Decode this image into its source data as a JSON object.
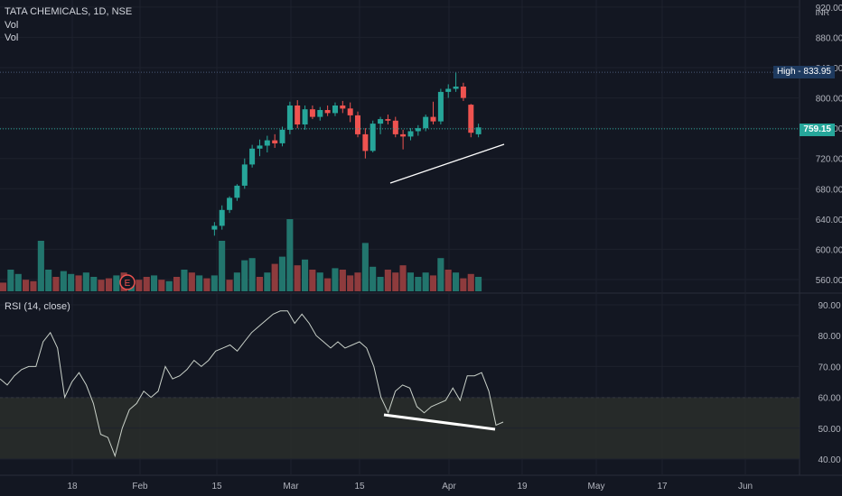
{
  "header": {
    "symbol_line": "TATA CHEMICALS, 1D, NSE",
    "vol_1": "Vol",
    "vol_2": "Vol",
    "currency": "INR"
  },
  "rsi_panel": {
    "title": "RSI (14, close)"
  },
  "badges": {
    "high_label": "High",
    "high_value": "833.95",
    "last_value": "759.15",
    "earnings_marker": "E"
  },
  "colors": {
    "background": "#131722",
    "up": "#26a69a",
    "down": "#ef5350",
    "up_volume": "#22756d",
    "down_volume": "#8e3b3d",
    "last_price_badge": "#26a69a",
    "high_badge": "#1e3a5f",
    "rsi_line": "#c9d1c9",
    "rsi_band": "#2a2e2a",
    "trendline": "#ffffff",
    "grid": "#1e222d",
    "axis_text": "#b2b5be"
  },
  "chart_data": [
    {
      "type": "candlestick",
      "title": "TATA CHEMICALS, 1D, NSE",
      "y_axis": {
        "ticks": [
          "920.00",
          "880.00",
          "840.00",
          "800.00",
          "760.00",
          "720.00",
          "680.00",
          "640.00",
          "600.00",
          "560.00"
        ],
        "range": [
          550,
          922
        ]
      },
      "x_axis": {
        "ticks": [
          "18",
          "Feb",
          "15",
          "Mar",
          "15",
          "Apr",
          "19",
          "May",
          "17",
          "Jun"
        ]
      },
      "price_lines": {
        "high": 833.95,
        "last": 759.15
      },
      "candles_visible_range_note": "",
      "candles": [
        {
          "o": 626,
          "h": 636,
          "l": 618,
          "c": 631
        },
        {
          "o": 631,
          "h": 658,
          "l": 626,
          "c": 652
        },
        {
          "o": 652,
          "h": 670,
          "l": 648,
          "c": 668
        },
        {
          "o": 668,
          "h": 686,
          "l": 664,
          "c": 684
        },
        {
          "o": 684,
          "h": 720,
          "l": 680,
          "c": 712
        },
        {
          "o": 712,
          "h": 738,
          "l": 708,
          "c": 733
        },
        {
          "o": 733,
          "h": 745,
          "l": 723,
          "c": 737
        },
        {
          "o": 737,
          "h": 750,
          "l": 728,
          "c": 744
        },
        {
          "o": 744,
          "h": 752,
          "l": 734,
          "c": 740
        },
        {
          "o": 740,
          "h": 762,
          "l": 736,
          "c": 758
        },
        {
          "o": 758,
          "h": 795,
          "l": 752,
          "c": 790
        },
        {
          "o": 790,
          "h": 797,
          "l": 760,
          "c": 765
        },
        {
          "o": 765,
          "h": 790,
          "l": 758,
          "c": 785
        },
        {
          "o": 785,
          "h": 790,
          "l": 772,
          "c": 775
        },
        {
          "o": 775,
          "h": 788,
          "l": 770,
          "c": 784
        },
        {
          "o": 784,
          "h": 790,
          "l": 776,
          "c": 780
        },
        {
          "o": 780,
          "h": 794,
          "l": 776,
          "c": 790
        },
        {
          "o": 790,
          "h": 796,
          "l": 780,
          "c": 786
        },
        {
          "o": 786,
          "h": 794,
          "l": 768,
          "c": 777
        },
        {
          "o": 777,
          "h": 782,
          "l": 748,
          "c": 752
        },
        {
          "o": 752,
          "h": 760,
          "l": 720,
          "c": 730
        },
        {
          "o": 730,
          "h": 770,
          "l": 728,
          "c": 766
        },
        {
          "o": 766,
          "h": 775,
          "l": 752,
          "c": 772
        },
        {
          "o": 772,
          "h": 778,
          "l": 765,
          "c": 770
        },
        {
          "o": 770,
          "h": 775,
          "l": 748,
          "c": 752
        },
        {
          "o": 752,
          "h": 758,
          "l": 732,
          "c": 749
        },
        {
          "o": 749,
          "h": 760,
          "l": 744,
          "c": 756
        },
        {
          "o": 756,
          "h": 764,
          "l": 750,
          "c": 760
        },
        {
          "o": 760,
          "h": 778,
          "l": 756,
          "c": 775
        },
        {
          "o": 775,
          "h": 795,
          "l": 765,
          "c": 769
        },
        {
          "o": 769,
          "h": 812,
          "l": 765,
          "c": 808
        },
        {
          "o": 808,
          "h": 818,
          "l": 800,
          "c": 812
        },
        {
          "o": 812,
          "h": 834,
          "l": 808,
          "c": 815
        },
        {
          "o": 815,
          "h": 820,
          "l": 796,
          "c": 800
        },
        {
          "o": 791,
          "h": 792,
          "l": 748,
          "c": 754
        },
        {
          "o": 752,
          "h": 766,
          "l": 748,
          "c": 761
        }
      ],
      "volume": [
        {
          "v": 0.22,
          "up": true
        },
        {
          "v": 0.7,
          "up": true
        },
        {
          "v": 0.16,
          "up": false
        },
        {
          "v": 0.26,
          "up": true
        },
        {
          "v": 0.43,
          "up": true
        },
        {
          "v": 0.46,
          "up": true
        },
        {
          "v": 0.2,
          "up": false
        },
        {
          "v": 0.26,
          "up": true
        },
        {
          "v": 0.38,
          "up": false
        },
        {
          "v": 0.48,
          "up": true
        },
        {
          "v": 1.0,
          "up": true
        },
        {
          "v": 0.36,
          "up": false
        },
        {
          "v": 0.44,
          "up": true
        },
        {
          "v": 0.3,
          "up": false
        },
        {
          "v": 0.26,
          "up": true
        },
        {
          "v": 0.18,
          "up": false
        },
        {
          "v": 0.32,
          "up": true
        },
        {
          "v": 0.3,
          "up": false
        },
        {
          "v": 0.22,
          "up": false
        },
        {
          "v": 0.26,
          "up": false
        },
        {
          "v": 0.67,
          "up": true
        },
        {
          "v": 0.34,
          "up": true
        },
        {
          "v": 0.2,
          "up": true
        },
        {
          "v": 0.3,
          "up": false
        },
        {
          "v": 0.26,
          "up": false
        },
        {
          "v": 0.36,
          "up": false
        },
        {
          "v": 0.26,
          "up": true
        },
        {
          "v": 0.2,
          "up": true
        },
        {
          "v": 0.26,
          "up": true
        },
        {
          "v": 0.22,
          "up": false
        },
        {
          "v": 0.46,
          "up": true
        },
        {
          "v": 0.3,
          "up": false
        },
        {
          "v": 0.26,
          "up": true
        },
        {
          "v": 0.18,
          "up": false
        },
        {
          "v": 0.24,
          "up": false
        },
        {
          "v": 0.2,
          "up": true
        }
      ]
    },
    {
      "type": "line",
      "title": "RSI (14, close)",
      "y_axis": {
        "ticks": [
          "90.00",
          "80.00",
          "70.00",
          "60.00",
          "50.00",
          "40.00"
        ],
        "range": [
          37,
          93
        ]
      },
      "band": [
        40,
        60
      ],
      "values": [
        66,
        64,
        67,
        69,
        70,
        70,
        78,
        81,
        76,
        60,
        65,
        68,
        64,
        58,
        48,
        47,
        41,
        50,
        56,
        58,
        62,
        60,
        62,
        70,
        66,
        67,
        69,
        72,
        70,
        72,
        75,
        76,
        77,
        75,
        78,
        81,
        83,
        85,
        87,
        88,
        88,
        84,
        87,
        84,
        80,
        78,
        76,
        78,
        76,
        77,
        78,
        76,
        70,
        60,
        55,
        62,
        64,
        63,
        57,
        55,
        57,
        58,
        59,
        63,
        59,
        67,
        67,
        68,
        62,
        51,
        52
      ]
    }
  ]
}
